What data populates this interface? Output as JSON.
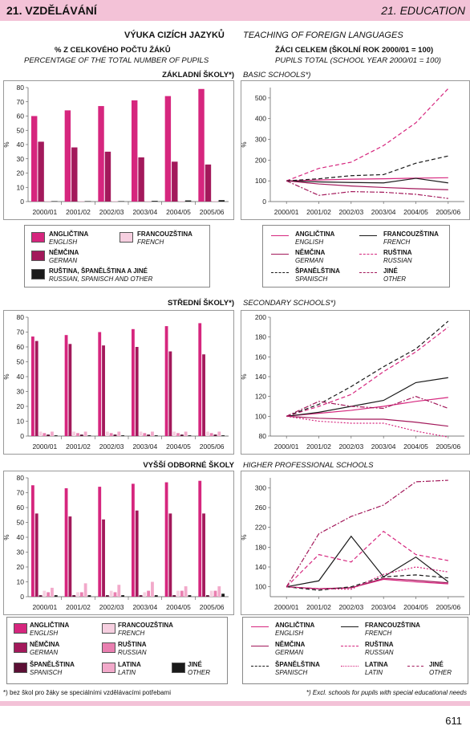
{
  "header": {
    "left": "21. VZDĚLÁVÁNÍ",
    "right": "21. EDUCATION"
  },
  "titles": {
    "main_cz": "VÝUKA CIZÍCH JAZYKŮ",
    "main_en": "TEACHING OF FOREIGN LANGUAGES",
    "left_cz": "% Z CELKOVÉHO POČTU ŽÁKŮ",
    "left_en": "PERCENTAGE OF THE TOTAL NUMBER OF PUPILS",
    "right_cz": "ŽÁCI CELKEM (ŠKOLNÍ ROK 2000/01 = 100)",
    "right_en": "PUPILS TOTAL (SCHOOL YEAR 2000/01 = 100)",
    "basic_cz": "ZÁKLADNÍ ŠKOLY*)",
    "basic_en": "BASIC SCHOOLS*)",
    "secondary_cz": "STŘEDNÍ ŠKOLY*)",
    "secondary_en": "SECONDARY SCHOOLS*)",
    "higher_cz": "VYŠŠÍ ODBORNÉ ŠKOLY",
    "higher_en": "HIGHER PROFESSIONAL SCHOOLS"
  },
  "labels": {
    "en_cz": "ANGLIČTINA",
    "en_en": "ENGLISH",
    "fr_cz": "FRANCOUZŠTINA",
    "fr_en": "FRENCH",
    "de_cz": "NĚMČINA",
    "de_en": "GERMAN",
    "ru_cz": "RUŠTINA",
    "ru_en": "RUSSIAN",
    "es_cz": "ŠPANĚLŠTINA",
    "es_en": "SPANISCH",
    "other_cz": "JINÉ",
    "other_en": "OTHER",
    "la_cz": "LATINA",
    "la_en": "LATIN",
    "rso_cz": "RUŠTINA, ŠPANĚLŠTINA A JINÉ",
    "rso_en": "RUSSIAN, SPANISCH AND OTHER"
  },
  "footnote": {
    "cz": "*) bez škol pro žáky se speciálními vzdělávacími potřebami",
    "en": "*) Excl. schools for pupils with special educational needs"
  },
  "page_number": "611",
  "colors": {
    "english": "#d6267e",
    "german": "#a3195b",
    "french": "#f6cfe0",
    "russian": "#e97fb0",
    "spanish": "#5c0f35",
    "latin": "#f2a9ca",
    "other": "#1a1a1a",
    "band": "#f3c2d7"
  },
  "chart_data": [
    {
      "type": "bar",
      "title": "ZÁKLADNÍ ŠKOLY*)",
      "ylabel": "%",
      "ylim": [
        0,
        80
      ],
      "yticks": [
        0,
        10,
        20,
        30,
        40,
        50,
        60,
        70,
        80
      ],
      "categories": [
        "2000/01",
        "2001/02",
        "2002/03",
        "2003/04",
        "2004/05",
        "2005/06"
      ],
      "series": [
        {
          "name": "ANGLIČTINA",
          "values": [
            60,
            64,
            67,
            71,
            74,
            79
          ]
        },
        {
          "name": "NĚMČINA",
          "values": [
            42,
            38,
            35,
            31,
            28,
            26
          ]
        },
        {
          "name": "FRANCOUZŠTINA",
          "values": [
            0.5,
            0.5,
            0.5,
            0.5,
            0.5,
            0.5
          ]
        },
        {
          "name": "RUŠTINA, ŠPANĚLŠTINA A JINÉ",
          "values": [
            0.3,
            0.3,
            0.3,
            0.5,
            0.8,
            1
          ]
        }
      ]
    },
    {
      "type": "line",
      "title": "BASIC SCHOOLS*)",
      "ylabel": "%",
      "ylim": [
        0,
        550
      ],
      "yticks": [
        0,
        100,
        200,
        300,
        400,
        500
      ],
      "x": [
        "2000/01",
        "2001/02",
        "2002/03",
        "2003/04",
        "2004/05",
        "2005/06"
      ],
      "series": [
        {
          "name": "ANGLIČTINA",
          "values": [
            100,
            104,
            108,
            110,
            113,
            115
          ]
        },
        {
          "name": "FRANCOUZŠTINA",
          "values": [
            100,
            95,
            92,
            90,
            112,
            90
          ]
        },
        {
          "name": "NĚMČINA",
          "values": [
            100,
            85,
            75,
            68,
            62,
            57
          ]
        },
        {
          "name": "RUŠTINA",
          "values": [
            100,
            160,
            190,
            270,
            380,
            545
          ]
        },
        {
          "name": "ŠPANĚLŠTINA",
          "values": [
            100,
            110,
            125,
            130,
            185,
            220
          ]
        },
        {
          "name": "JINÉ",
          "values": [
            100,
            30,
            48,
            45,
            35,
            15
          ]
        }
      ]
    },
    {
      "type": "bar",
      "title": "STŘEDNÍ ŠKOLY*)",
      "ylabel": "%",
      "ylim": [
        0,
        80
      ],
      "yticks": [
        0,
        10,
        20,
        30,
        40,
        50,
        60,
        70,
        80
      ],
      "categories": [
        "2000/01",
        "2001/02",
        "2002/03",
        "2003/04",
        "2004/05",
        "2005/06"
      ],
      "series": [
        {
          "name": "ANGLIČTINA",
          "values": [
            67,
            68,
            70,
            72,
            74,
            76
          ]
        },
        {
          "name": "NĚMČINA",
          "values": [
            64,
            62,
            61,
            60,
            57,
            55
          ]
        },
        {
          "name": "FRANCOUZŠTINA",
          "values": [
            3,
            3,
            3,
            3,
            3,
            3
          ]
        },
        {
          "name": "RUŠTINA",
          "values": [
            2,
            2,
            2,
            2,
            2,
            2
          ]
        },
        {
          "name": "ŠPANĚLŠTINA",
          "values": [
            1,
            1,
            1,
            1,
            1,
            1
          ]
        },
        {
          "name": "LATINA",
          "values": [
            3,
            3,
            3,
            3,
            3,
            3
          ]
        },
        {
          "name": "JINÉ",
          "values": [
            0.5,
            0.5,
            0.5,
            0.5,
            0.5,
            0.5
          ]
        }
      ]
    },
    {
      "type": "line",
      "title": "SECONDARY SCHOOLS*)",
      "ylabel": "%",
      "ylim": [
        80,
        200
      ],
      "yticks": [
        80,
        100,
        120,
        140,
        160,
        180,
        200
      ],
      "x": [
        "2000/01",
        "2001/02",
        "2002/03",
        "2003/04",
        "2004/05",
        "2005/06"
      ],
      "series": [
        {
          "name": "ANGLIČTINA",
          "values": [
            100,
            103,
            106,
            110,
            115,
            119
          ]
        },
        {
          "name": "FRANCOUZŠTINA",
          "values": [
            100,
            104,
            110,
            116,
            134,
            139
          ]
        },
        {
          "name": "NĚMČINA",
          "values": [
            100,
            98,
            97,
            97,
            94,
            90
          ]
        },
        {
          "name": "RUŠTINA",
          "values": [
            100,
            110,
            122,
            145,
            165,
            190
          ]
        },
        {
          "name": "ŠPANĚLŠTINA",
          "values": [
            100,
            112,
            130,
            150,
            168,
            196
          ]
        },
        {
          "name": "LATINA",
          "values": [
            100,
            95,
            93,
            93,
            85,
            79
          ]
        },
        {
          "name": "JINÉ",
          "values": [
            100,
            115,
            110,
            108,
            120,
            108
          ]
        }
      ]
    },
    {
      "type": "bar",
      "title": "VYŠŠÍ ODBORNÉ ŠKOLY",
      "ylabel": "%",
      "ylim": [
        0,
        80
      ],
      "yticks": [
        0,
        10,
        20,
        30,
        40,
        50,
        60,
        70,
        80
      ],
      "categories": [
        "2000/01",
        "2001/02",
        "2002/03",
        "2003/04",
        "2004/05",
        "2005/06"
      ],
      "series": [
        {
          "name": "ANGLIČTINA",
          "values": [
            75,
            73,
            74,
            76,
            77,
            78
          ]
        },
        {
          "name": "NĚMČINA",
          "values": [
            56,
            54,
            52,
            58,
            56,
            56
          ]
        },
        {
          "name": "ŠPANĚLŠTINA",
          "values": [
            1,
            1,
            1,
            1,
            1,
            1
          ]
        },
        {
          "name": "FRANCOUZŠTINA",
          "values": [
            4,
            3,
            4,
            3,
            4,
            4
          ]
        },
        {
          "name": "RUŠTINA",
          "values": [
            3,
            3,
            3,
            4,
            4,
            4
          ]
        },
        {
          "name": "LATINA",
          "values": [
            6,
            9,
            8,
            10,
            7,
            7
          ]
        },
        {
          "name": "JINÉ",
          "values": [
            1,
            1,
            1,
            1,
            1,
            2
          ]
        }
      ]
    },
    {
      "type": "line",
      "title": "HIGHER PROFESSIONAL SCHOOLS",
      "ylabel": "%",
      "ylim": [
        80,
        320
      ],
      "yticks": [
        100,
        140,
        180,
        220,
        260,
        300
      ],
      "x": [
        "2000/01",
        "2001/02",
        "2002/03",
        "2003/04",
        "2004/05",
        "2005/06"
      ],
      "series": [
        {
          "name": "ANGLIČTINA",
          "values": [
            100,
            96,
            98,
            115,
            110,
            106
          ]
        },
        {
          "name": "FRANCOUZŠTINA",
          "values": [
            100,
            112,
            202,
            120,
            160,
            110
          ]
        },
        {
          "name": "NĚMČINA",
          "values": [
            100,
            96,
            98,
            117,
            113,
            108
          ]
        },
        {
          "name": "RUŠTINA",
          "values": [
            100,
            165,
            150,
            212,
            165,
            153
          ]
        },
        {
          "name": "ŠPANĚLŠTINA",
          "values": [
            100,
            93,
            100,
            120,
            124,
            118
          ]
        },
        {
          "name": "LATINA",
          "values": [
            100,
            96,
            95,
            125,
            140,
            130
          ]
        },
        {
          "name": "JINÉ",
          "values": [
            100,
            207,
            242,
            265,
            312,
            315
          ]
        }
      ]
    }
  ]
}
